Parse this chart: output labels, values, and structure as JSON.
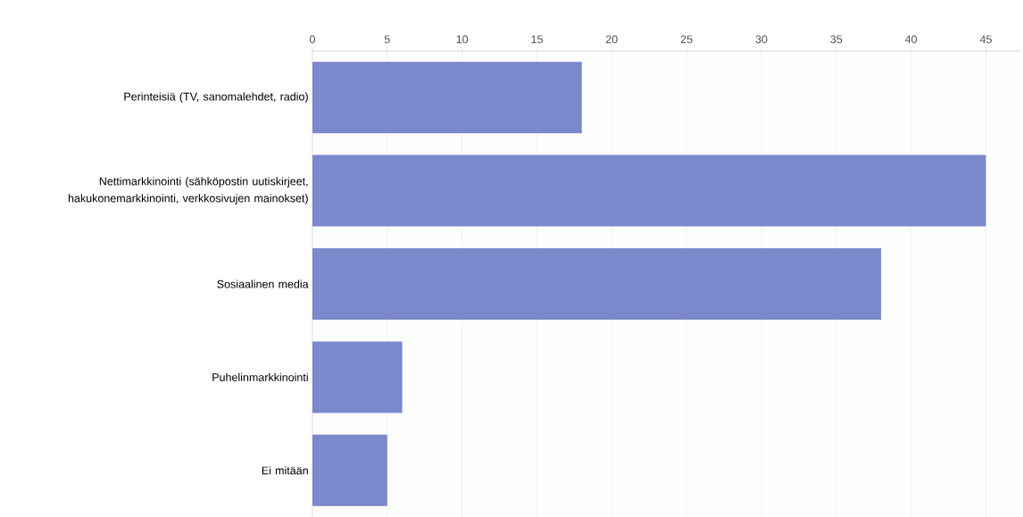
{
  "chart_data": {
    "type": "bar",
    "orientation": "horizontal",
    "categories": [
      "Perinteisiä (TV, sanomalehdet, radio)",
      "Nettimarkkinointi (sähköpostin uutiskirjeet, hakukonemarkkinointi, verkkosivujen mainokset)",
      "Sosiaalinen media",
      "Puhelinmarkkinointi",
      "Ei mitään"
    ],
    "values": [
      18,
      45,
      38,
      6,
      5
    ],
    "color": "#7b88cc",
    "xlim": [
      0,
      47.3
    ],
    "xticks": [
      0,
      5,
      10,
      15,
      20,
      25,
      30,
      35,
      40,
      45
    ],
    "grid": "x"
  }
}
